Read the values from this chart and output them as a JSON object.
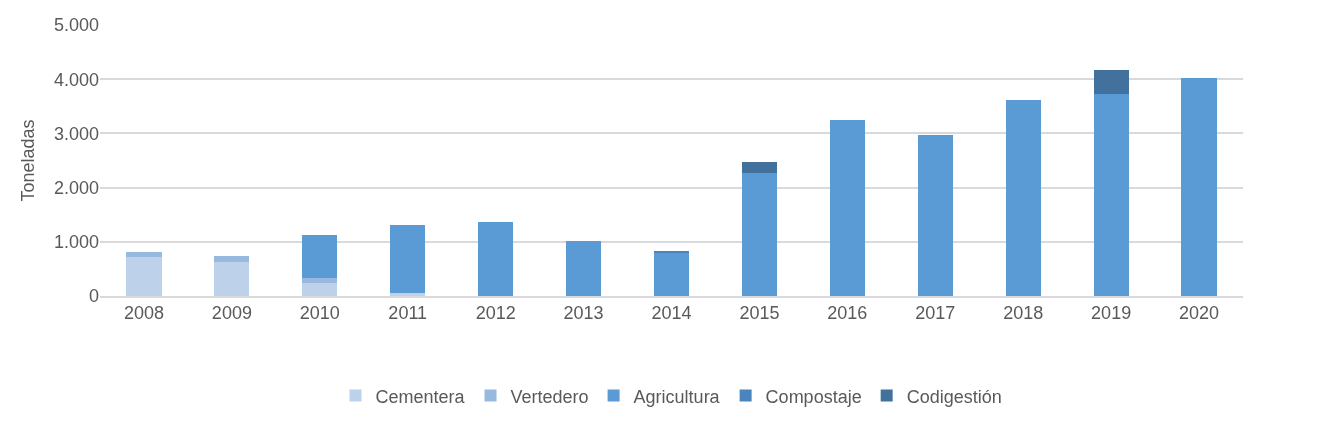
{
  "chart_data": {
    "type": "bar",
    "stacked": true,
    "ylabel": "Toneladas",
    "categories": [
      "2008",
      "2009",
      "2010",
      "2011",
      "2012",
      "2013",
      "2014",
      "2015",
      "2016",
      "2017",
      "2018",
      "2019",
      "2020"
    ],
    "series": [
      {
        "name": "Cementera",
        "color": "#bdd1ea",
        "values": [
          725,
          628,
          233,
          56,
          0,
          0,
          0,
          0,
          0,
          0,
          0,
          0,
          0
        ]
      },
      {
        "name": "Vertedero",
        "color": "#97b9e0",
        "values": [
          88,
          105,
          105,
          0,
          0,
          0,
          0,
          0,
          0,
          0,
          0,
          0,
          0
        ]
      },
      {
        "name": "Agricultura",
        "color": "#5b9bd5",
        "values": [
          0,
          0,
          789,
          1256,
          1361,
          1023,
          795,
          2270,
          3245,
          2979,
          3615,
          3736,
          4018
        ]
      },
      {
        "name": "Compostaje",
        "color": "#4a86bd",
        "values": [
          0,
          0,
          0,
          0,
          0,
          0,
          18,
          0,
          0,
          0,
          0,
          0,
          0
        ]
      },
      {
        "name": "Codigestión",
        "color": "#41719c",
        "values": [
          0,
          0,
          0,
          0,
          0,
          0,
          0,
          202,
          0,
          0,
          0,
          443,
          0
        ]
      }
    ],
    "ylim": [
      0,
      5000
    ],
    "yticks": [
      {
        "value": 0,
        "label": "0"
      },
      {
        "value": 1000,
        "label": "1.000"
      },
      {
        "value": 2000,
        "label": "2.000"
      },
      {
        "value": 3000,
        "label": "3.000"
      },
      {
        "value": 4000,
        "label": "4.000"
      },
      {
        "value": 5000,
        "label": "5.000"
      }
    ],
    "grid": "y",
    "legend": "bottom"
  }
}
